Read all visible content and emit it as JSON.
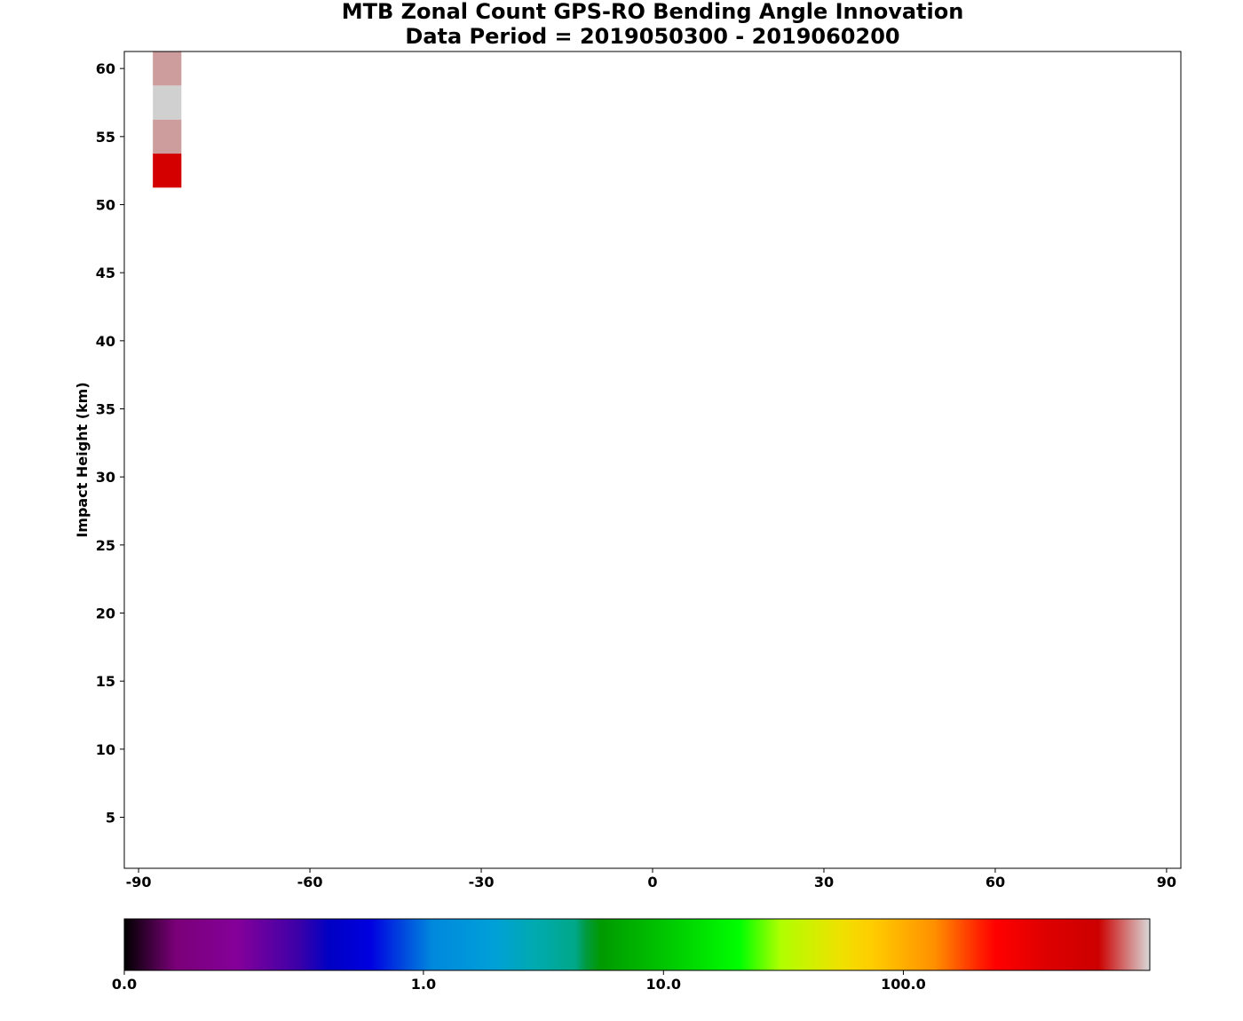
{
  "chart_data": {
    "type": "heatmap",
    "title_line1": "MTB Zonal Count GPS-RO Bending Angle Innovation",
    "title_line2": "Data Period = 2019050300 - 2019060200",
    "xlabel": "",
    "ylabel": "Impact Height (km)",
    "xlim": [
      -92.5,
      92.5
    ],
    "ylim": [
      1.25,
      61.25
    ],
    "x_ticks": [
      -90,
      -60,
      -30,
      0,
      30,
      60,
      90
    ],
    "x_tick_labels": [
      "-90",
      "-60",
      "-30",
      "0",
      "30",
      "60",
      "90"
    ],
    "y_ticks": [
      5,
      10,
      15,
      20,
      25,
      30,
      35,
      40,
      45,
      50,
      55,
      60
    ],
    "y_tick_labels": [
      "5",
      "10",
      "15",
      "20",
      "25",
      "30",
      "35",
      "40",
      "45",
      "50",
      "55",
      "60"
    ],
    "grid": false,
    "cells": [
      {
        "lat_min": -87.5,
        "lat_max": -82.5,
        "height_min": 51.25,
        "height_max": 53.75,
        "color": "#d40000"
      },
      {
        "lat_min": -87.5,
        "lat_max": -82.5,
        "height_min": 53.75,
        "height_max": 56.25,
        "color": "#cd9d9d"
      },
      {
        "lat_min": -87.5,
        "lat_max": -82.5,
        "height_min": 56.25,
        "height_max": 58.75,
        "color": "#d0d0d0"
      },
      {
        "lat_min": -87.5,
        "lat_max": -82.5,
        "height_min": 58.75,
        "height_max": 61.25,
        "color": "#cd9d9d"
      }
    ],
    "colorbar": {
      "scale": "log",
      "tick_labels": [
        "0.0",
        "1.0",
        "10.0",
        "100.0"
      ],
      "tick_fractions": [
        0.0,
        0.2917,
        0.5258,
        0.7597
      ],
      "stops": [
        {
          "pos": 0.0,
          "color": "#000000"
        },
        {
          "pos": 0.05,
          "color": "#7a0078"
        },
        {
          "pos": 0.11,
          "color": "#85009a"
        },
        {
          "pos": 0.17,
          "color": "#3c00a8"
        },
        {
          "pos": 0.2,
          "color": "#0000c4"
        },
        {
          "pos": 0.24,
          "color": "#0000e0"
        },
        {
          "pos": 0.3,
          "color": "#0088dd"
        },
        {
          "pos": 0.36,
          "color": "#00a0d8"
        },
        {
          "pos": 0.4,
          "color": "#00aab0"
        },
        {
          "pos": 0.44,
          "color": "#00a888"
        },
        {
          "pos": 0.45,
          "color": "#009a40"
        },
        {
          "pos": 0.465,
          "color": "#009a00"
        },
        {
          "pos": 0.53,
          "color": "#00c800"
        },
        {
          "pos": 0.6,
          "color": "#00ff00"
        },
        {
          "pos": 0.64,
          "color": "#b0ff00"
        },
        {
          "pos": 0.7,
          "color": "#f0e000"
        },
        {
          "pos": 0.73,
          "color": "#ffcc00"
        },
        {
          "pos": 0.79,
          "color": "#ff9000"
        },
        {
          "pos": 0.835,
          "color": "#ff2000"
        },
        {
          "pos": 0.85,
          "color": "#ff0000"
        },
        {
          "pos": 0.9,
          "color": "#dd0000"
        },
        {
          "pos": 0.95,
          "color": "#cc0000"
        },
        {
          "pos": 1.0,
          "color": "#d8d8d8"
        }
      ]
    }
  }
}
